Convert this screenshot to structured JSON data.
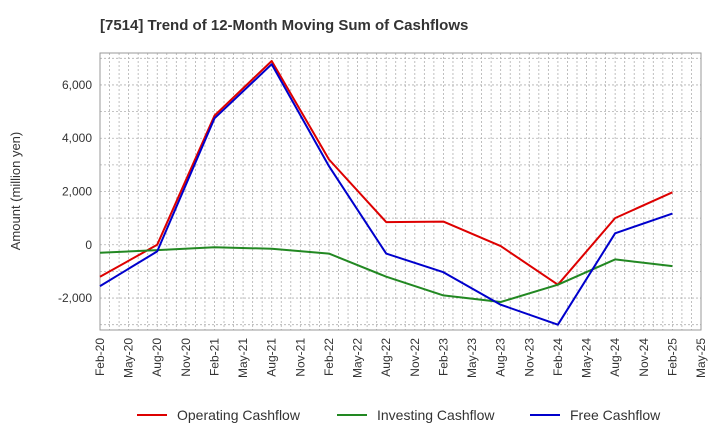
{
  "chart_data": {
    "type": "line",
    "title": "[7514]  Trend of 12-Month Moving Sum of Cashflows",
    "xlabel": "",
    "ylabel": "Amount (million yen)",
    "ylim": [
      -3200,
      7200
    ],
    "yticks": [
      -2000,
      0,
      2000,
      4000,
      6000
    ],
    "ytick_labels": [
      "-2,000",
      "0",
      "2,000",
      "4,000",
      "6,000"
    ],
    "x_tick_labels": [
      "Feb-20",
      "May-20",
      "Aug-20",
      "Nov-20",
      "Feb-21",
      "May-21",
      "Aug-21",
      "Nov-21",
      "Feb-22",
      "May-22",
      "Aug-22",
      "Nov-22",
      "Feb-23",
      "May-23",
      "Aug-23",
      "Nov-23",
      "Feb-24",
      "May-24",
      "Aug-24",
      "Nov-24",
      "Feb-25",
      "May-25"
    ],
    "categories": [
      "Feb-20",
      "Aug-20",
      "Feb-21",
      "Aug-21",
      "Feb-22",
      "Aug-22",
      "Feb-23",
      "Aug-23",
      "Feb-24",
      "Aug-24",
      "Feb-25"
    ],
    "grid": true,
    "legend_position": "bottom",
    "series": [
      {
        "name": "Operating Cashflow",
        "color": "#dd0000",
        "values": [
          -1200,
          0,
          4850,
          6900,
          3200,
          850,
          870,
          -50,
          -1500,
          1000,
          1970
        ]
      },
      {
        "name": "Investing Cashflow",
        "color": "#228822",
        "values": [
          -300,
          -200,
          -90,
          -150,
          -330,
          -1200,
          -1900,
          -2150,
          -1500,
          -550,
          -800
        ]
      },
      {
        "name": "Free Cashflow",
        "color": "#0000cc",
        "values": [
          -1550,
          -250,
          4750,
          6780,
          2950,
          -330,
          -1030,
          -2250,
          -3000,
          430,
          1170
        ]
      }
    ]
  }
}
